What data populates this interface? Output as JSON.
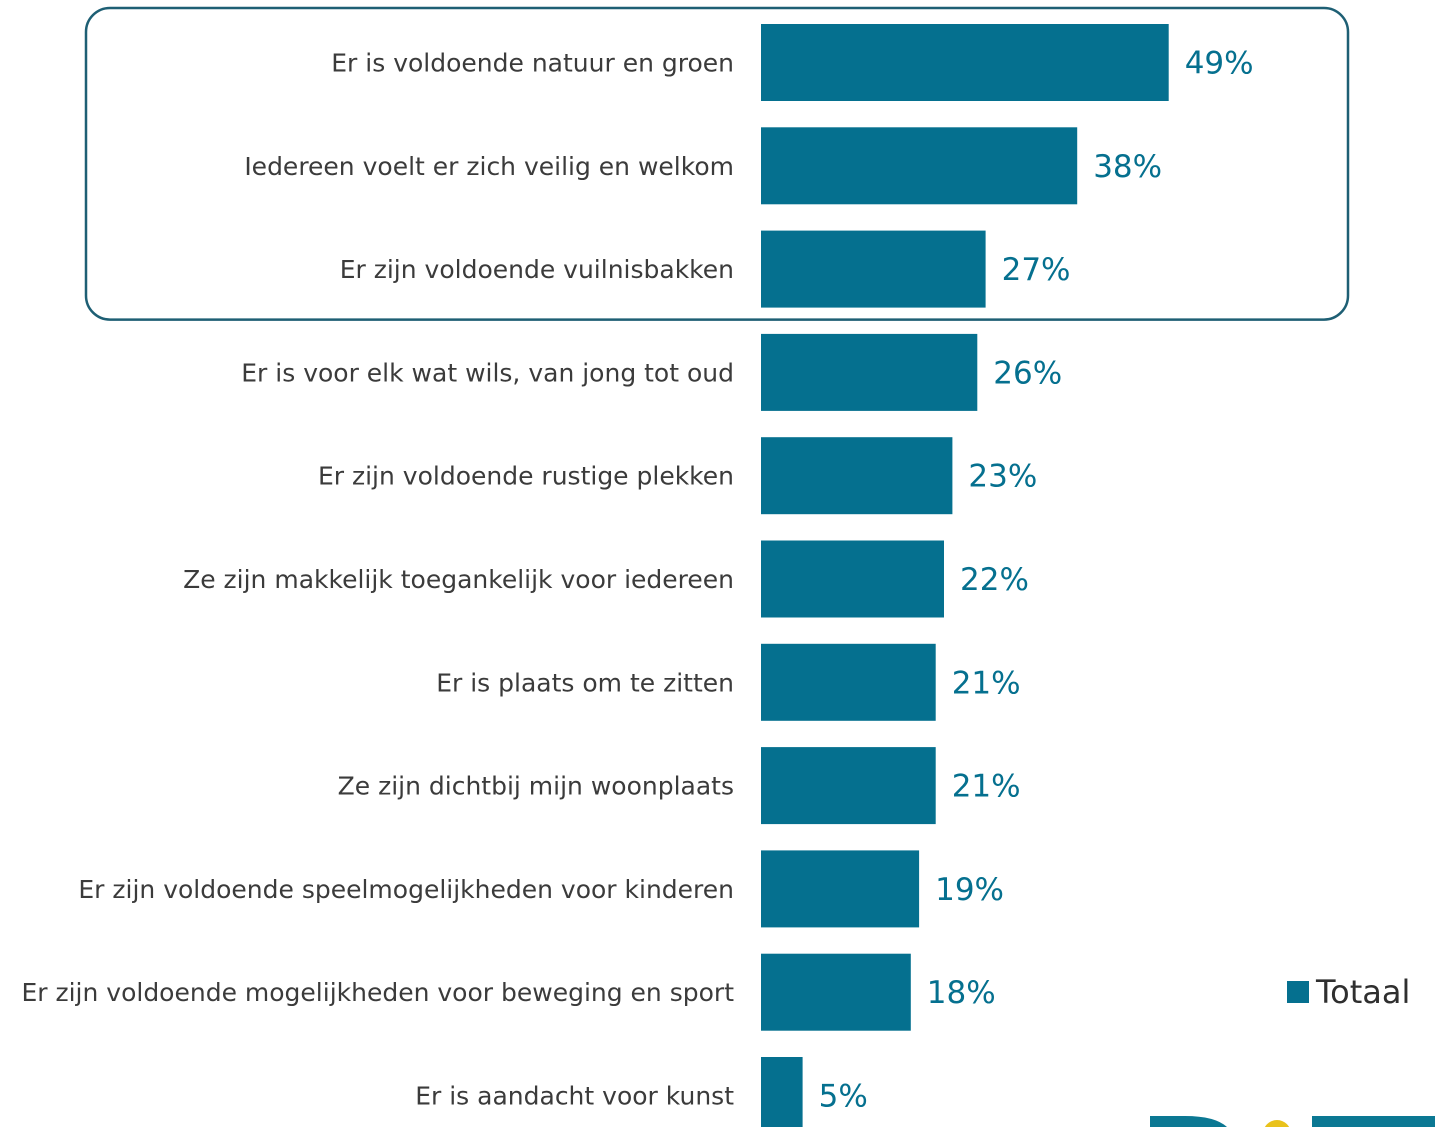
{
  "colors": {
    "bar": "#05708f",
    "value_label": "#05708f",
    "highlight_border": "#1e5f74",
    "logo_teal": "#0b7893",
    "logo_yellow": "#e9c21b"
  },
  "legend": {
    "label": "Totaal",
    "position": "right"
  },
  "highlight": {
    "first_index": 0,
    "last_index": 2
  },
  "chart_data": {
    "type": "bar",
    "orientation": "horizontal",
    "title": "",
    "xlabel": "",
    "ylabel": "",
    "xlim": [
      0,
      49
    ],
    "grid": false,
    "value_suffix": "%",
    "categories": [
      "Er is voldoende natuur en groen",
      "Iedereen voelt er zich veilig en welkom",
      "Er zijn voldoende vuilnisbakken",
      "Er is voor elk wat wils, van jong tot oud",
      "Er zijn voldoende rustige plekken",
      "Ze zijn makkelijk toegankelijk voor iedereen",
      "Er is plaats om te zitten",
      "Ze zijn dichtbij mijn woonplaats",
      "Er zijn voldoende speelmogelijkheden voor kinderen",
      "Er zijn voldoende mogelijkheden voor beweging en sport",
      "Er is aandacht voor kunst"
    ],
    "series": [
      {
        "name": "Totaal",
        "values": [
          49,
          38,
          27,
          26,
          23,
          22,
          21,
          21,
          19,
          18,
          5
        ],
        "labels": [
          "49%",
          "38%",
          "27%",
          "26%",
          "23%",
          "22%",
          "21%",
          "21%",
          "19%",
          "18%",
          "5%"
        ]
      }
    ]
  }
}
